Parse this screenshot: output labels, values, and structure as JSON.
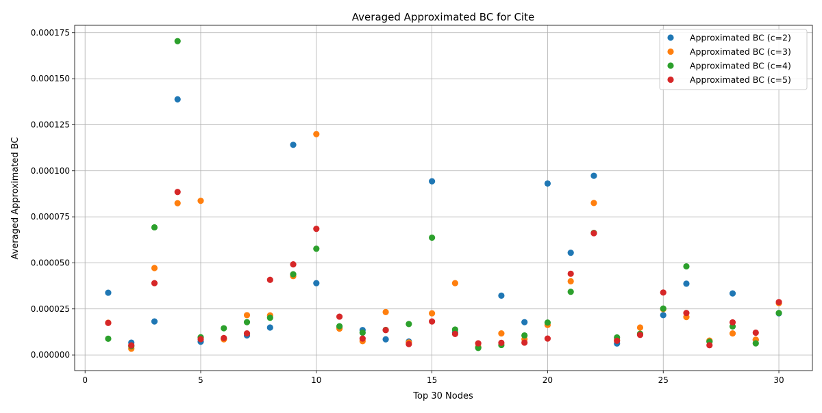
{
  "chart_data": {
    "type": "scatter",
    "title": "Averaged Approximated BC for Cite",
    "xlabel": "Top 30 Nodes",
    "ylabel": "Averaged Approximated BC",
    "xlim": [
      -0.45,
      31.45
    ],
    "ylim": [
      -8.5e-06,
      0.000179
    ],
    "x_ticks": [
      0,
      5,
      10,
      15,
      20,
      25,
      30
    ],
    "x_tick_labels": [
      "0",
      "5",
      "10",
      "15",
      "20",
      "25",
      "30"
    ],
    "y_ticks": [
      0,
      2.5e-05,
      5e-05,
      7.5e-05,
      0.0001,
      0.000125,
      0.00015,
      0.000175
    ],
    "y_tick_labels": [
      "0.000000",
      "0.000025",
      "0.000050",
      "0.000075",
      "0.000100",
      "0.000125",
      "0.000150",
      "0.000175"
    ],
    "grid": true,
    "legend_position": "top-right",
    "x": [
      1,
      2,
      3,
      4,
      5,
      6,
      7,
      8,
      9,
      10,
      11,
      12,
      13,
      14,
      15,
      16,
      17,
      18,
      19,
      20,
      21,
      22,
      23,
      24,
      25,
      26,
      27,
      28,
      29,
      30
    ],
    "series": [
      {
        "name": "Approximated BC (c=2)",
        "color": "#1f77b4",
        "values": [
          3.38e-05,
          6.7e-06,
          1.82e-05,
          0.0001388,
          7.2e-06,
          8.8e-06,
          1.06e-05,
          1.49e-05,
          0.0001141,
          3.9e-05,
          1.51e-05,
          1.35e-05,
          8.5e-06,
          7.3e-06,
          9.43e-05,
          1.22e-05,
          4.2e-06,
          3.22e-05,
          1.78e-05,
          9.31e-05,
          5.55e-05,
          9.73e-05,
          6.2e-06,
          1.12e-05,
          2.16e-05,
          3.87e-05,
          7.5e-06,
          3.34e-05,
          8.2e-06,
          2.26e-05
        ]
      },
      {
        "name": "Approximated BC (c=3)",
        "color": "#ff7f0e",
        "values": [
          1.75e-05,
          3.4e-06,
          4.72e-05,
          8.24e-05,
          8.37e-05,
          8.5e-06,
          2.16e-05,
          2.15e-05,
          4.28e-05,
          0.0001199,
          1.43e-05,
          7.5e-06,
          2.33e-05,
          6.8e-06,
          2.26e-05,
          3.9e-05,
          4.3e-06,
          1.17e-05,
          8.6e-06,
          1.63e-05,
          4e-05,
          8.25e-05,
          8.1e-06,
          1.49e-05,
          2.49e-05,
          2.06e-05,
          7.8e-06,
          1.17e-05,
          8.3e-06,
          2.81e-05
        ]
      },
      {
        "name": "Approximated BC (c=4)",
        "color": "#2ca02c",
        "values": [
          8.8e-06,
          4.8e-06,
          6.93e-05,
          0.0001704,
          9.6e-06,
          1.45e-05,
          1.78e-05,
          2.02e-05,
          4.38e-05,
          5.77e-05,
          1.56e-05,
          1.21e-05,
          1.36e-05,
          1.68e-05,
          6.37e-05,
          1.38e-05,
          3.8e-06,
          5.4e-06,
          1.06e-05,
          1.76e-05,
          3.43e-05,
          6.63e-05,
          9.5e-06,
          1.15e-05,
          2.52e-05,
          4.81e-05,
          7.2e-06,
          1.55e-05,
          6.3e-06,
          2.28e-05
        ]
      },
      {
        "name": "Approximated BC (c=5)",
        "color": "#d62728",
        "values": [
          1.74e-05,
          5.2e-06,
          3.9e-05,
          8.85e-05,
          8.6e-06,
          9.2e-06,
          1.17e-05,
          4.08e-05,
          4.92e-05,
          6.85e-05,
          2.08e-05,
          8.9e-06,
          1.35e-05,
          5.9e-06,
          1.82e-05,
          1.14e-05,
          6.3e-06,
          6.6e-06,
          6.7e-06,
          8.9e-06,
          4.41e-05,
          6.61e-05,
          7.7e-06,
          1.09e-05,
          3.39e-05,
          2.28e-05,
          5.3e-06,
          1.77e-05,
          1.21e-05,
          2.87e-05
        ]
      }
    ]
  }
}
